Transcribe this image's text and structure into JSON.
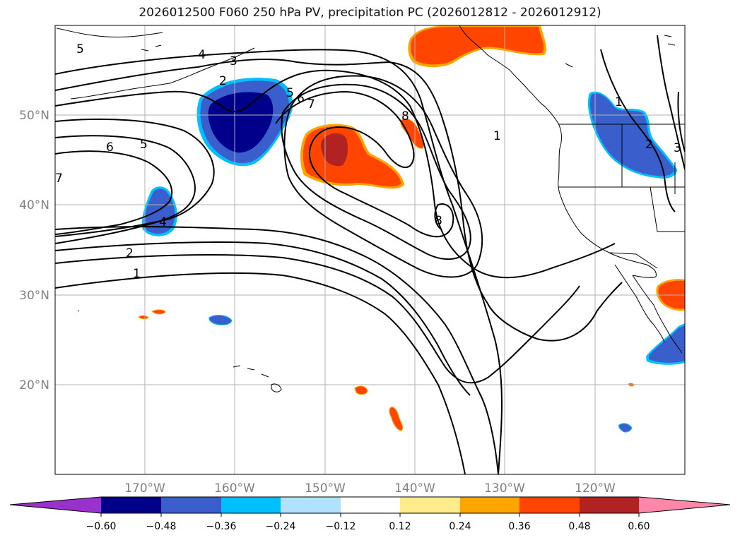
{
  "title": "2026012500 F060 250 hPa PV, precipitation PC (2026012812 - 2026012912)",
  "lat_labels": [
    "50°N",
    "40°N",
    "30°N",
    "20°N"
  ],
  "lon_labels": [
    "170°W",
    "160°W",
    "150°W",
    "140°W",
    "130°W",
    "120°W"
  ],
  "contour_labels": [
    "5",
    "4",
    "3",
    "2",
    "5",
    "6",
    "7",
    "6",
    "5",
    "8",
    "7",
    "4",
    "2",
    "1",
    "1",
    "8",
    "1",
    "2",
    "3"
  ],
  "colorbar": {
    "tick_labels": [
      "−0.60",
      "−0.48",
      "−0.36",
      "−0.24",
      "−0.12",
      "0.12",
      "0.24",
      "0.36",
      "0.48",
      "0.60"
    ],
    "colors": [
      "#9932cc",
      "#00008b",
      "#3a5fcd",
      "#00bfff",
      "#b0e2ff",
      "#ffffff",
      "#ffec8b",
      "#ffa500",
      "#ff4500",
      "#b22222",
      "#ff88aa"
    ]
  },
  "colors": {
    "strong_negative": "#00008b",
    "negative": "#3a5fcd",
    "weak_negative": "#00bfff",
    "positive": "#ff4500",
    "strong_positive": "#b22222",
    "weak_positive": "#ffa500",
    "grid": "#b0b0b0",
    "contour": "#000000"
  }
}
